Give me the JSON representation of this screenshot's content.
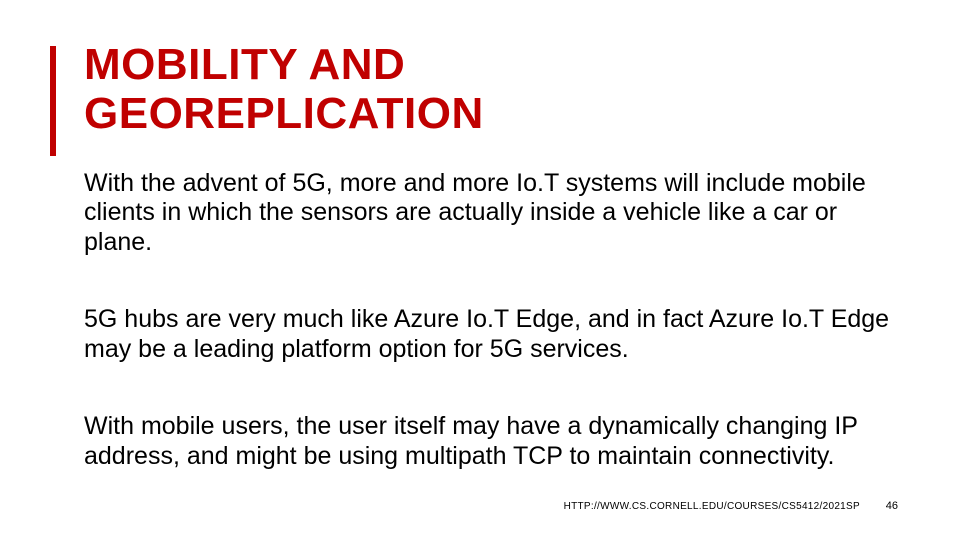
{
  "accent_color": "#c00000",
  "text_color": "#000000",
  "background_color": "#ffffff",
  "title_line1": "MOBILITY AND",
  "title_line2": "GEOREPLICATION",
  "paragraphs": [
    "With the advent of 5G, more and more Io.T systems will include mobile clients in which the sensors are actually inside a vehicle like a car or plane.",
    "5G hubs are very much like Azure Io.T Edge, and in fact Azure Io.T Edge may be a leading platform option for 5G services.",
    "With mobile users, the user itself may have a dynamically changing IP address, and might be using multipath TCP to maintain connectivity."
  ],
  "footer_url": "HTTP://WWW.CS.CORNELL.EDU/COURSES/CS5412/2021SP",
  "page_number": "46",
  "title_fontsize": 44,
  "body_fontsize": 25,
  "footer_fontsize": 10
}
